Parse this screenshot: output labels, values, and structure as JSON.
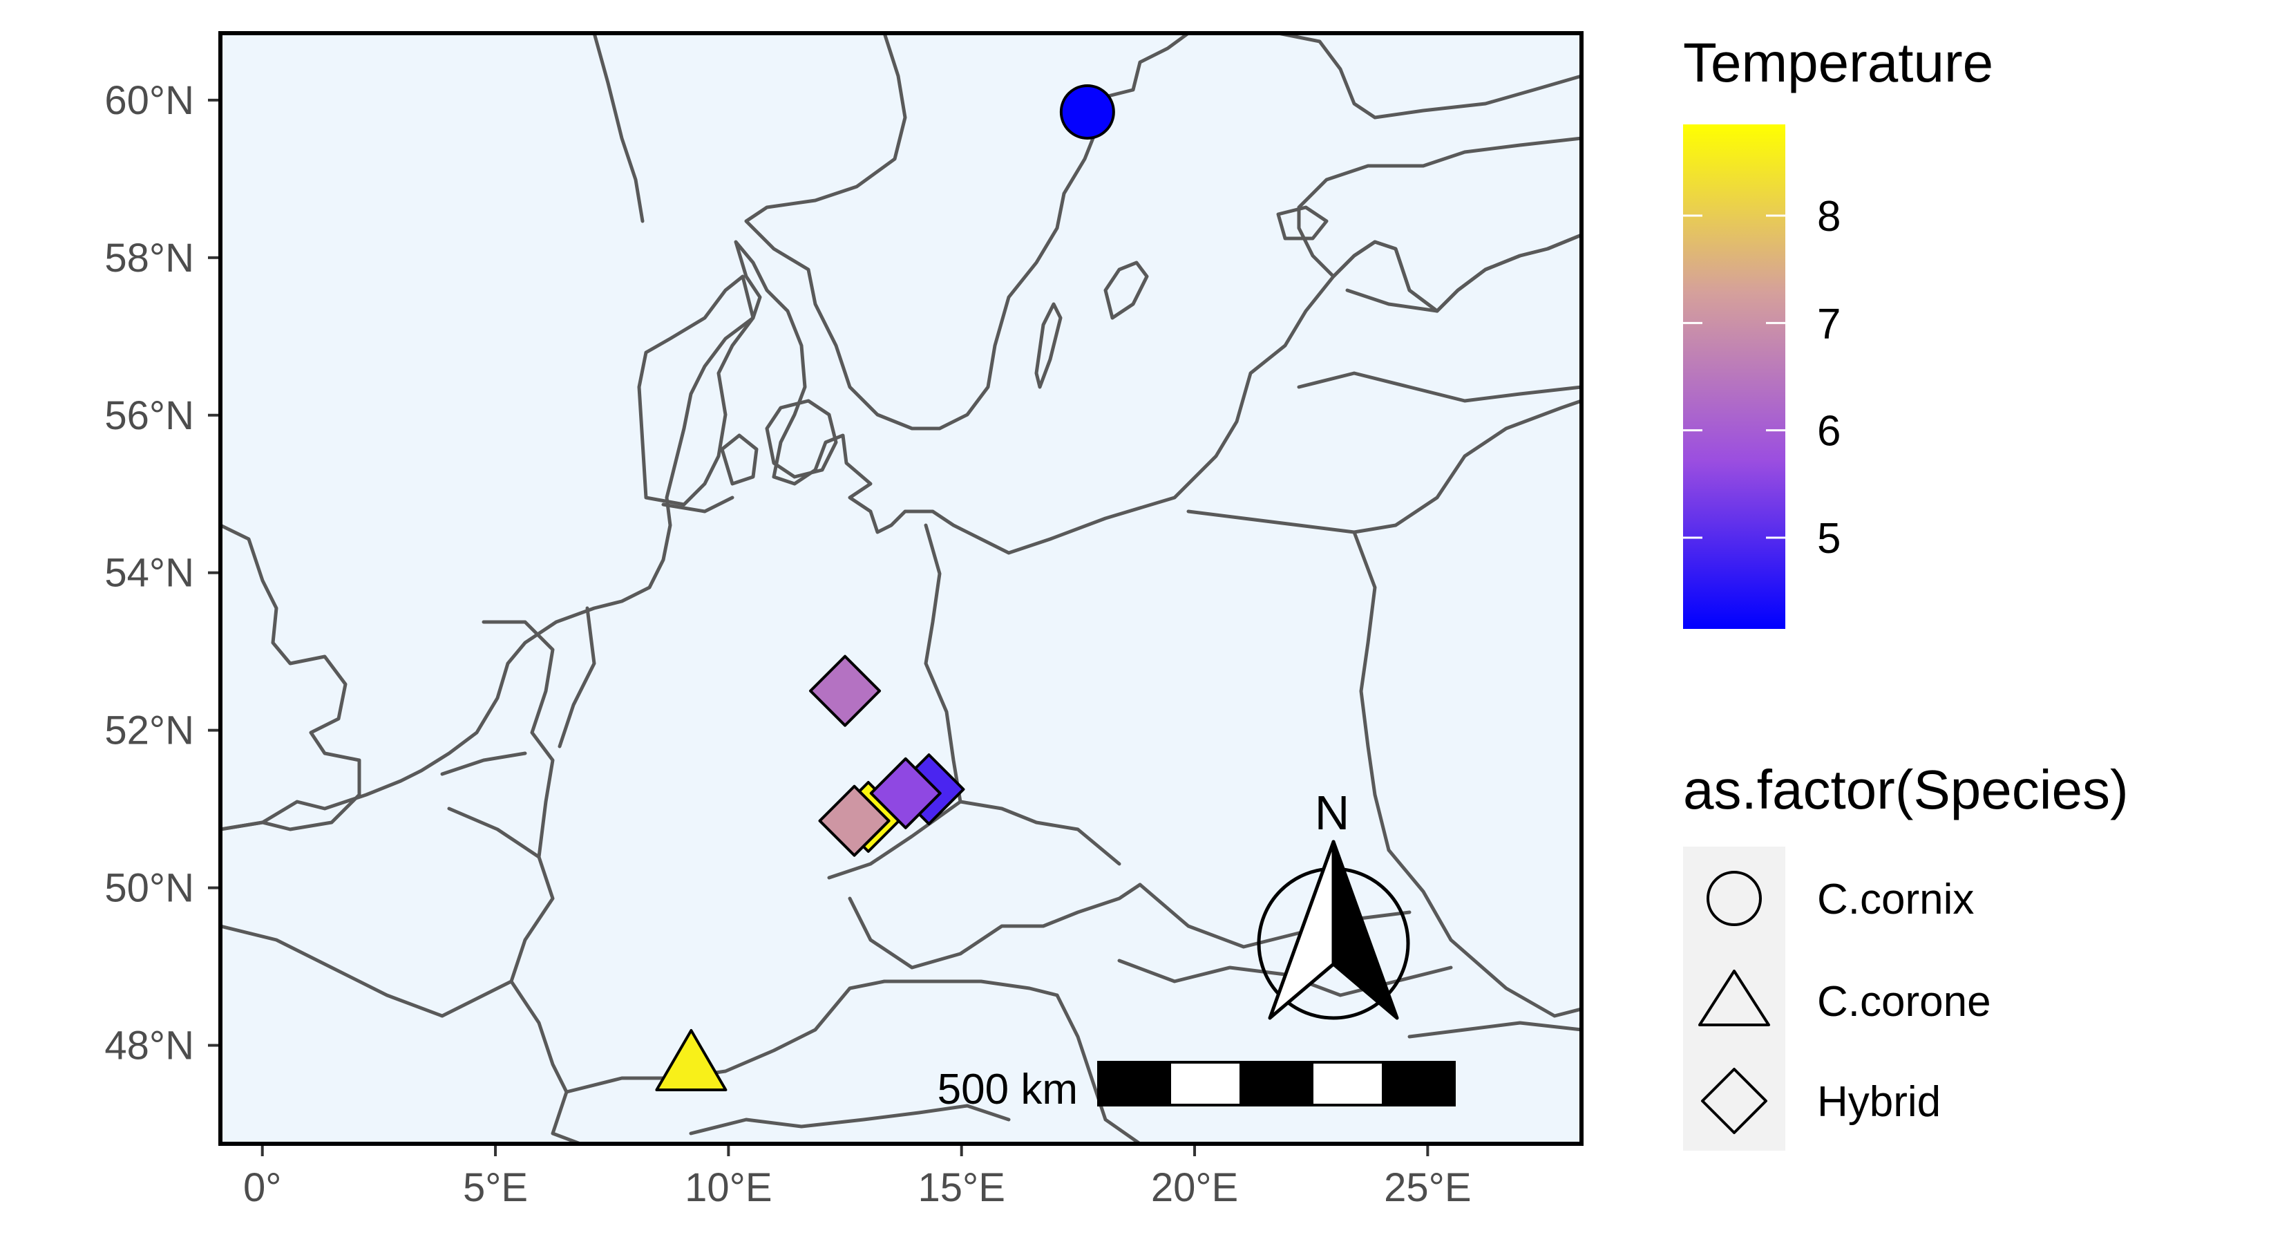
{
  "chart_data": {
    "type": "map",
    "x_ticks": [
      {
        "value": 0,
        "label": "0°"
      },
      {
        "value": 5,
        "label": "5°E"
      },
      {
        "value": 10,
        "label": "10°E"
      },
      {
        "value": 15,
        "label": "15°E"
      },
      {
        "value": 20,
        "label": "20°E"
      },
      {
        "value": 25,
        "label": "25°E"
      }
    ],
    "y_ticks": [
      {
        "value": 48,
        "label": "48°N"
      },
      {
        "value": 50,
        "label": "50°N"
      },
      {
        "value": 52,
        "label": "52°N"
      },
      {
        "value": 54,
        "label": "54°N"
      },
      {
        "value": 56,
        "label": "56°N"
      },
      {
        "value": 58,
        "label": "58°N"
      },
      {
        "value": 60,
        "label": "60°N"
      }
    ],
    "xlim": [
      -0.9,
      28.3
    ],
    "ylim": [
      46.75,
      60.85
    ],
    "grid": false,
    "sea_color": "#eef6fd",
    "land_color": "#ffffff",
    "border_color": "#595959",
    "points": [
      {
        "lon": 17.7,
        "lat": 59.85,
        "temperature": 4.2,
        "species": "C.cornix"
      },
      {
        "lon": 9.2,
        "lat": 47.75,
        "temperature": 8.6,
        "species": "C.corone"
      },
      {
        "lon": 13.0,
        "lat": 50.9,
        "temperature": 8.7,
        "species": "Hybrid"
      },
      {
        "lon": 12.5,
        "lat": 52.5,
        "temperature": 6.4,
        "species": "Hybrid"
      },
      {
        "lon": 14.3,
        "lat": 51.25,
        "temperature": 4.9,
        "species": "Hybrid"
      },
      {
        "lon": 13.8,
        "lat": 51.2,
        "temperature": 5.6,
        "species": "Hybrid"
      },
      {
        "lon": 12.7,
        "lat": 50.85,
        "temperature": 7.1,
        "species": "Hybrid"
      }
    ],
    "color_legend": {
      "title": "Temperature",
      "min": 4.15,
      "max": 8.85,
      "breaks": [
        5,
        6,
        7,
        8
      ],
      "colors": [
        "#0000ff",
        "#9b4ee0",
        "#d5a09b",
        "#ffff00"
      ],
      "placement": "right"
    },
    "shape_legend": {
      "title": "as.factor(Species)",
      "items": [
        {
          "label": "C.cornix",
          "shape": "circle"
        },
        {
          "label": "C.corone",
          "shape": "triangle"
        },
        {
          "label": "Hybrid",
          "shape": "diamond"
        }
      ],
      "placement": "right"
    },
    "scale_bar": {
      "label": "500 km",
      "placement": "bottom-right"
    },
    "north_arrow": {
      "label": "N",
      "placement": "bottom-right"
    }
  }
}
